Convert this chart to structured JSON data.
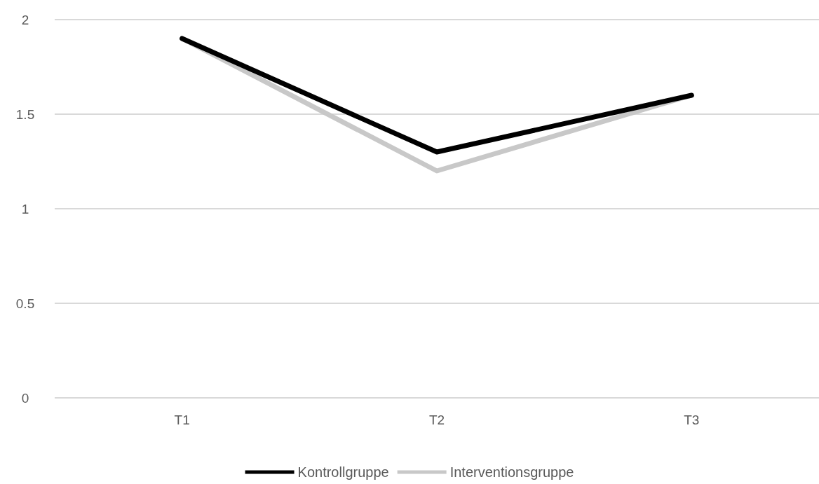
{
  "chart_data": {
    "type": "line",
    "categories": [
      "T1",
      "T2",
      "T3"
    ],
    "series": [
      {
        "name": "Kontrollgruppe",
        "color": "#000000",
        "values": [
          1.9,
          1.3,
          1.6
        ]
      },
      {
        "name": "Interventionsgruppe",
        "color": "#c8c8c8",
        "values": [
          1.9,
          1.2,
          1.6
        ]
      }
    ],
    "ylim": [
      0,
      2
    ],
    "yticks": [
      0,
      0.5,
      1,
      1.5,
      2
    ],
    "grid": "y",
    "legend": "bottom",
    "marker": "none",
    "line_style": "solid"
  }
}
